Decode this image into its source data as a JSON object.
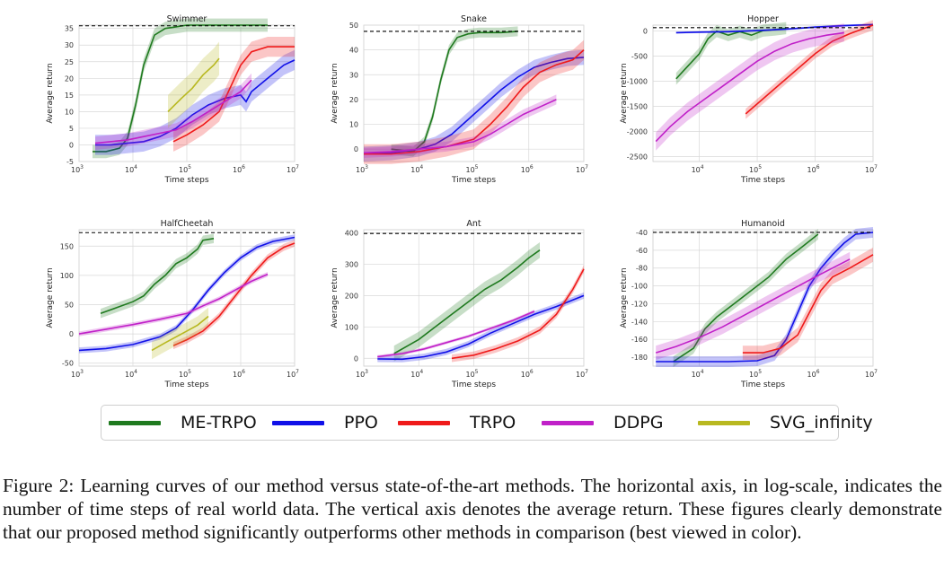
{
  "legend": [
    {
      "key": "me",
      "label": "ME-TRPO",
      "color": "#1f7a1f"
    },
    {
      "key": "ppo",
      "label": "PPO",
      "color": "#1010e8"
    },
    {
      "key": "trpo",
      "label": "TRPO",
      "color": "#ef1a1a"
    },
    {
      "key": "ddpg",
      "label": "DDPG",
      "color": "#c020c8"
    },
    {
      "key": "svg",
      "label": "SVG_infinity",
      "color": "#b8b820"
    }
  ],
  "caption": "Figure 2: Learning curves of our method versus state-of-the-art methods. The horizontal axis, in log-scale, indicates the number of time steps of real world data. The vertical axis denotes the average return. These figures clearly demonstrate that our proposed method significantly outperforms other methods in comparison (best viewed in color).",
  "chart_data": [
    {
      "type": "line",
      "title": "Swimmer",
      "xlabel": "Time steps",
      "ylabel": "Average return",
      "x_scale": "log",
      "xlim": [
        3,
        7
      ],
      "x_tick_labels": [
        "10^3",
        "10^4",
        "10^5",
        "10^6",
        "10^7"
      ],
      "ylim": [
        -5,
        36
      ],
      "yticks": [
        -5,
        0,
        5,
        10,
        15,
        20,
        25,
        30,
        35
      ],
      "reference_line": 35.8,
      "series": [
        {
          "key": "me",
          "x": [
            3.25,
            3.5,
            3.75,
            3.9,
            4.05,
            4.2,
            4.4,
            4.6,
            4.8,
            5.0,
            5.5,
            6.0,
            6.5
          ],
          "y": [
            -2,
            -2,
            -1,
            2,
            12,
            24,
            33,
            35,
            35.5,
            36,
            36,
            36,
            36
          ],
          "band": 2
        },
        {
          "key": "ppo",
          "x": [
            3.3,
            3.6,
            3.9,
            4.2,
            4.5,
            4.8,
            5.1,
            5.4,
            5.7,
            6.0,
            6.1,
            6.2,
            6.5,
            6.8,
            7.0
          ],
          "y": [
            0,
            0,
            0.5,
            1,
            2.5,
            5,
            9,
            12,
            14,
            15,
            13,
            16,
            20,
            24,
            25.5
          ],
          "band": 3
        },
        {
          "key": "trpo",
          "x": [
            4.75,
            5.0,
            5.3,
            5.6,
            5.8,
            6.0,
            6.2,
            6.5,
            6.8,
            7.0
          ],
          "y": [
            1,
            3,
            6,
            10,
            17,
            24,
            28,
            29.5,
            29.5,
            29.5
          ],
          "band": 3
        },
        {
          "key": "ddpg",
          "x": [
            3.3,
            3.6,
            3.9,
            4.2,
            4.5,
            4.8,
            5.1,
            5.4,
            5.7,
            6.0,
            6.2
          ],
          "y": [
            0.5,
            1,
            1.5,
            2.5,
            3.5,
            4.5,
            7,
            10,
            13,
            16,
            19.5
          ],
          "band": 2
        },
        {
          "key": "svg",
          "x": [
            4.65,
            4.9,
            5.1,
            5.3,
            5.5,
            5.6
          ],
          "y": [
            10,
            14,
            17,
            21,
            24,
            26
          ],
          "band": 5
        }
      ]
    },
    {
      "type": "line",
      "title": "Snake",
      "xlabel": "Time steps",
      "ylabel": "Average return",
      "x_scale": "log",
      "xlim": [
        3,
        7
      ],
      "x_tick_labels": [
        "10^3",
        "10^4",
        "10^5",
        "10^6",
        "10^7"
      ],
      "ylim": [
        -5,
        50
      ],
      "yticks": [
        0,
        10,
        20,
        30,
        40,
        50
      ],
      "reference_line": 47.5,
      "series": [
        {
          "key": "me",
          "x": [
            3.5,
            3.9,
            4.1,
            4.25,
            4.4,
            4.55,
            4.7,
            4.9,
            5.1,
            5.3,
            5.5,
            5.8
          ],
          "y": [
            0,
            -1,
            3,
            13,
            28,
            40,
            45,
            46.5,
            47,
            47,
            47,
            47.5
          ],
          "band": 2
        },
        {
          "key": "ppo",
          "x": [
            3.0,
            3.5,
            4.0,
            4.3,
            4.6,
            4.9,
            5.2,
            5.5,
            5.8,
            6.1,
            6.4,
            6.7,
            7.0
          ],
          "y": [
            -2,
            -1.5,
            0,
            2,
            6,
            12,
            18,
            24,
            29,
            33,
            35,
            36.5,
            37
          ],
          "band": 3
        },
        {
          "key": "trpo",
          "x": [
            3.0,
            3.5,
            4.0,
            4.5,
            5.0,
            5.3,
            5.6,
            5.9,
            6.2,
            6.5,
            6.8,
            7.0
          ],
          "y": [
            -2,
            -2,
            -1,
            1,
            4,
            10,
            17,
            25,
            31,
            34,
            36,
            40
          ],
          "band": 4
        },
        {
          "key": "ddpg",
          "x": [
            3.0,
            3.5,
            4.0,
            4.5,
            5.0,
            5.3,
            5.6,
            5.9,
            6.2,
            6.5
          ],
          "y": [
            -1.5,
            -1,
            0,
            1,
            3,
            6,
            10,
            14,
            17,
            20
          ],
          "band": 2
        }
      ]
    },
    {
      "type": "line",
      "title": "Hopper",
      "xlabel": "Time steps",
      "ylabel": "Average return",
      "x_scale": "log",
      "xlim": [
        3.2,
        7
      ],
      "x_tick_labels": [
        "10^4",
        "10^5",
        "10^6",
        "10^7"
      ],
      "ylim": [
        -2600,
        120
      ],
      "yticks": [
        0,
        -500,
        -1000,
        -1500,
        -2000,
        -2500
      ],
      "reference_line": 70,
      "series": [
        {
          "key": "me",
          "x": [
            3.6,
            3.8,
            4.0,
            4.15,
            4.3,
            4.5,
            4.7,
            4.9,
            5.1,
            5.3,
            5.5
          ],
          "y": [
            -950,
            -700,
            -450,
            -150,
            0,
            -80,
            -10,
            -80,
            10,
            30,
            60
          ],
          "band": 120
        },
        {
          "key": "ppo",
          "x": [
            3.6,
            4.0,
            4.5,
            5.0,
            5.5,
            6.0,
            6.5,
            7.0
          ],
          "y": [
            -30,
            -20,
            -10,
            10,
            40,
            80,
            110,
            130
          ],
          "band": 20
        },
        {
          "key": "trpo",
          "x": [
            4.8,
            5.1,
            5.4,
            5.7,
            6.0,
            6.3,
            6.6,
            7.0
          ],
          "y": [
            -1650,
            -1350,
            -1050,
            -750,
            -450,
            -200,
            -50,
            120
          ],
          "band": 100
        },
        {
          "key": "ddpg",
          "x": [
            3.25,
            3.5,
            3.8,
            4.1,
            4.4,
            4.7,
            5.0,
            5.3,
            5.6,
            5.9,
            6.2,
            6.5
          ],
          "y": [
            -2200,
            -1900,
            -1600,
            -1350,
            -1100,
            -850,
            -600,
            -400,
            -250,
            -150,
            -80,
            -30
          ],
          "band": 180
        }
      ]
    },
    {
      "type": "line",
      "title": "HalfCheetah",
      "xlabel": "Time steps",
      "ylabel": "Average return",
      "x_scale": "log",
      "xlim": [
        3,
        7
      ],
      "x_tick_labels": [
        "10^3",
        "10^4",
        "10^5",
        "10^6",
        "10^7"
      ],
      "ylim": [
        -55,
        178
      ],
      "yticks": [
        -50,
        0,
        50,
        100,
        150
      ],
      "reference_line": 173,
      "series": [
        {
          "key": "me",
          "x": [
            3.4,
            3.7,
            4.0,
            4.2,
            4.4,
            4.6,
            4.8,
            5.0,
            5.2,
            5.3,
            5.5
          ],
          "y": [
            35,
            45,
            55,
            65,
            85,
            100,
            120,
            130,
            145,
            160,
            163
          ],
          "band": 8
        },
        {
          "key": "ppo",
          "x": [
            3.0,
            3.5,
            4.0,
            4.5,
            4.8,
            5.1,
            5.4,
            5.7,
            6.0,
            6.3,
            6.6,
            7.0
          ],
          "y": [
            -28,
            -25,
            -18,
            -5,
            10,
            40,
            75,
            105,
            130,
            148,
            158,
            165
          ],
          "band": 5
        },
        {
          "key": "trpo",
          "x": [
            4.75,
            5.0,
            5.3,
            5.6,
            5.9,
            6.2,
            6.5,
            6.8,
            7.0
          ],
          "y": [
            -20,
            -10,
            5,
            30,
            65,
            100,
            130,
            148,
            155
          ],
          "band": 6
        },
        {
          "key": "ddpg",
          "x": [
            3.0,
            3.5,
            4.0,
            4.5,
            5.0,
            5.3,
            5.6,
            5.9,
            6.2,
            6.5
          ],
          "y": [
            0,
            8,
            16,
            25,
            35,
            48,
            60,
            75,
            90,
            102
          ],
          "band": 4
        },
        {
          "key": "svg",
          "x": [
            4.35,
            4.6,
            4.8,
            5.0,
            5.2,
            5.4
          ],
          "y": [
            -28,
            -15,
            -5,
            5,
            15,
            30
          ],
          "band": 15
        }
      ]
    },
    {
      "type": "line",
      "title": "Ant",
      "xlabel": "Time steps",
      "ylabel": "Average return",
      "x_scale": "log",
      "xlim": [
        3,
        7
      ],
      "x_tick_labels": [
        "10^3",
        "10^4",
        "10^5",
        "10^6",
        "10^7"
      ],
      "ylim": [
        -25,
        410
      ],
      "yticks": [
        0,
        100,
        200,
        300,
        400
      ],
      "reference_line": 398,
      "series": [
        {
          "key": "me",
          "x": [
            3.55,
            3.8,
            4.0,
            4.3,
            4.6,
            4.9,
            5.2,
            5.5,
            5.8,
            6.0,
            6.2
          ],
          "y": [
            15,
            40,
            60,
            100,
            140,
            180,
            220,
            250,
            290,
            320,
            345
          ],
          "band": 25
        },
        {
          "key": "ppo",
          "x": [
            3.25,
            3.7,
            4.1,
            4.5,
            4.9,
            5.3,
            5.7,
            6.1,
            6.5,
            7.0
          ],
          "y": [
            -2,
            -3,
            5,
            20,
            45,
            80,
            110,
            140,
            165,
            200
          ],
          "band": 10
        },
        {
          "key": "trpo",
          "x": [
            4.6,
            5.0,
            5.4,
            5.8,
            6.2,
            6.5,
            6.8,
            7.0
          ],
          "y": [
            0,
            10,
            30,
            55,
            90,
            140,
            220,
            285
          ],
          "band": 12
        },
        {
          "key": "ddpg",
          "x": [
            3.25,
            3.7,
            4.1,
            4.5,
            4.9,
            5.3,
            5.7,
            6.1
          ],
          "y": [
            5,
            15,
            30,
            50,
            70,
            95,
            120,
            150
          ],
          "band": 5
        }
      ]
    },
    {
      "type": "line",
      "title": "Humanoid",
      "xlabel": "Time steps",
      "ylabel": "Average return",
      "x_scale": "log",
      "xlim": [
        3.2,
        7
      ],
      "x_tick_labels": [
        "10^4",
        "10^5",
        "10^6",
        "10^7"
      ],
      "ylim": [
        -190,
        -37
      ],
      "yticks": [
        -40,
        -60,
        -80,
        -100,
        -120,
        -140,
        -160,
        -180
      ],
      "reference_line": -40,
      "series": [
        {
          "key": "me",
          "x": [
            3.55,
            3.9,
            4.1,
            4.3,
            4.6,
            4.9,
            5.2,
            5.5,
            5.8,
            6.05
          ],
          "y": [
            -185,
            -170,
            -148,
            -135,
            -120,
            -105,
            -90,
            -70,
            -55,
            -42
          ],
          "band": 6
        },
        {
          "key": "ppo",
          "x": [
            3.25,
            3.9,
            4.5,
            5.0,
            5.3,
            5.5,
            5.7,
            5.9,
            6.1,
            6.3,
            6.5,
            6.7,
            7.0
          ],
          "y": [
            -185,
            -185,
            -185,
            -184,
            -178,
            -160,
            -130,
            -100,
            -80,
            -65,
            -52,
            -42,
            -40
          ],
          "band": 6
        },
        {
          "key": "trpo",
          "x": [
            4.75,
            5.1,
            5.4,
            5.7,
            5.9,
            6.1,
            6.3,
            6.6,
            7.0
          ],
          "y": [
            -175,
            -175,
            -170,
            -155,
            -130,
            -105,
            -90,
            -80,
            -65
          ],
          "band": 8
        },
        {
          "key": "ddpg",
          "x": [
            3.25,
            3.6,
            4.0,
            4.4,
            4.8,
            5.2,
            5.6,
            6.0,
            6.3,
            6.6
          ],
          "y": [
            -175,
            -168,
            -158,
            -146,
            -132,
            -118,
            -104,
            -90,
            -80,
            -70
          ],
          "band": 8
        }
      ]
    }
  ]
}
